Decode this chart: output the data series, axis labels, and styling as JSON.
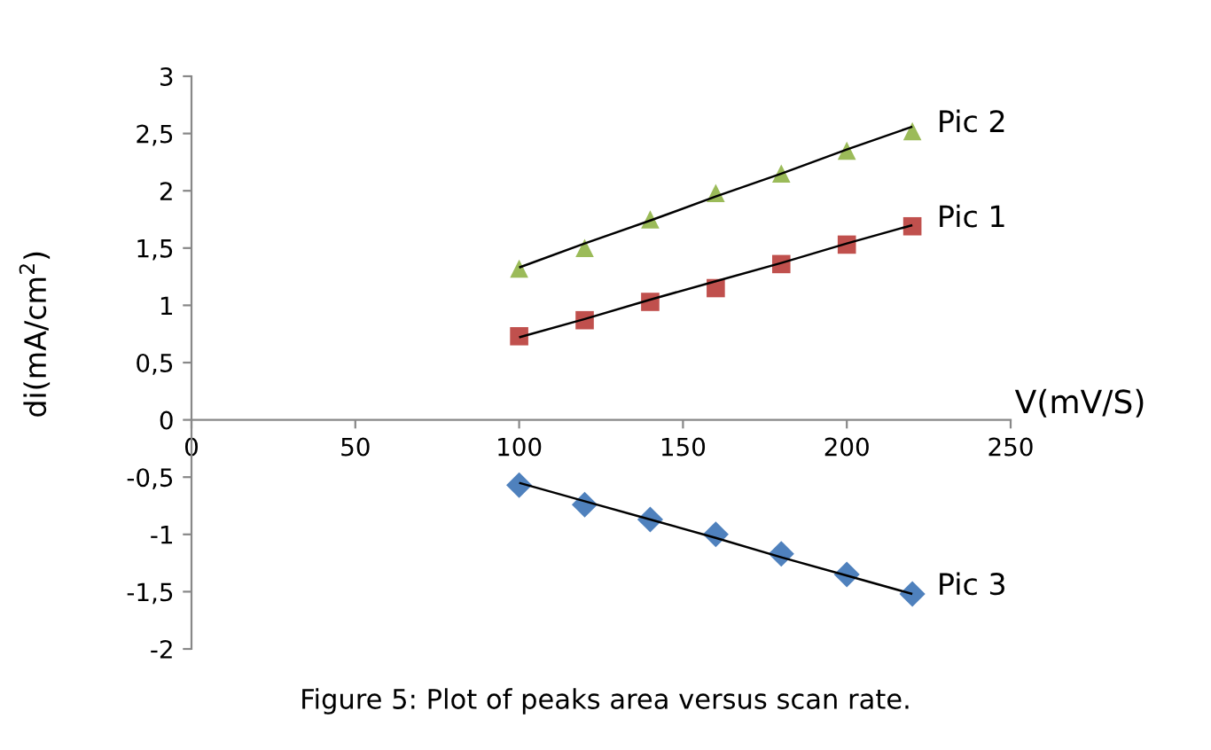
{
  "chart_data": {
    "type": "scatter",
    "ylabel": "di(mA/cm$^{2}$)",
    "xlabel": "V(mV/S)",
    "annotations": [
      "Figure 5: Plot of peaks area versus scan rate."
    ],
    "x": [
      100,
      120,
      140,
      160,
      180,
      200,
      220
    ],
    "series": [
      {
        "name": "Pic 2",
        "color": "#9bbb59",
        "marker": "triangle",
        "values": [
          1.32,
          1.5,
          1.75,
          1.98,
          2.15,
          2.35,
          2.52
        ]
      },
      {
        "name": "Pic 1",
        "color": "#c0504d",
        "marker": "square",
        "values": [
          0.73,
          0.87,
          1.03,
          1.15,
          1.36,
          1.53,
          1.69
        ]
      },
      {
        "name": "Pic 3",
        "color": "#4f81bd",
        "marker": "diamond",
        "values": [
          -0.57,
          -0.74,
          -0.87,
          -1.0,
          -1.17,
          -1.35,
          -1.52
        ]
      },
      {
        "type": "line",
        "color": "#000000",
        "values": [
          1.33,
          1.54,
          1.74,
          1.95,
          2.15,
          2.36,
          2.56
        ]
      },
      {
        "type": "line",
        "color": "#000000",
        "values": [
          0.72,
          0.88,
          1.05,
          1.21,
          1.37,
          1.54,
          1.7
        ]
      },
      {
        "type": "line",
        "color": "#000000",
        "values": [
          -0.55,
          -0.71,
          -0.87,
          -1.03,
          -1.2,
          -1.36,
          -1.52
        ]
      }
    ],
    "xlim": [
      0,
      250
    ],
    "xticks": [
      0,
      50,
      100,
      150,
      200,
      250
    ],
    "ylim": [
      -2,
      3
    ],
    "yticks": [
      -2,
      {
        "value": -1.5,
        "label": "-1,5"
      },
      -1,
      {
        "value": -0.5,
        "label": "-0,5"
      },
      0,
      {
        "value": 0.5,
        "label": "0,5"
      },
      1,
      {
        "value": 1.5,
        "label": "1,5"
      },
      2,
      {
        "value": 2.5,
        "label": "2,5"
      },
      3
    ],
    "grid": false,
    "legend": false
  }
}
